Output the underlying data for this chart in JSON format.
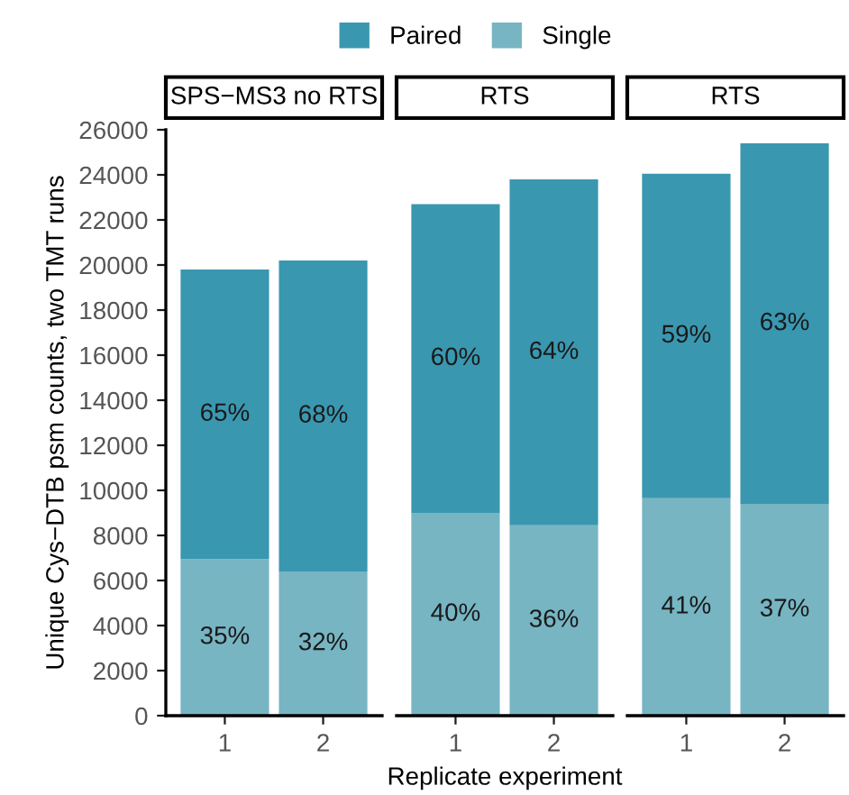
{
  "chart_data": [
    {
      "type": "bar",
      "title": "SPS−MS3 no RTS",
      "ylabel": "Unique Cys−DTB psm counts, two TMT runs",
      "categories": [
        "1",
        "2"
      ],
      "stacked": true,
      "ylim": [
        0,
        26000
      ],
      "yticks": [
        0,
        2000,
        4000,
        6000,
        8000,
        10000,
        12000,
        14000,
        16000,
        18000,
        20000,
        22000,
        24000,
        26000
      ],
      "grid": false,
      "legend": "top",
      "series": [
        {
          "name": "Single",
          "color": "#77b5c3",
          "values": [
            6950,
            6400
          ]
        },
        {
          "name": "Paired",
          "color": "#3a97b0",
          "values": [
            12850,
            13800
          ]
        }
      ],
      "annotations": [
        "35%",
        "32%",
        "65%",
        "68%"
      ]
    },
    {
      "type": "bar",
      "title": "RTS",
      "xlabel": "Replicate experiment",
      "categories": [
        "1",
        "2"
      ],
      "stacked": true,
      "ylim": [
        0,
        26000
      ],
      "tick_labels": "x",
      "grid": false,
      "series": [
        {
          "color": "#77b5c3",
          "values": [
            9000,
            8450
          ]
        },
        {
          "color": "#3a97b0",
          "values": [
            13700,
            15350
          ]
        }
      ],
      "annotations": [
        "40%",
        "36%",
        "60%",
        "64%"
      ]
    },
    {
      "type": "bar",
      "title": "RTS",
      "categories": [
        "1",
        "2"
      ],
      "stacked": true,
      "ylim": [
        0,
        26000
      ],
      "tick_labels": "x",
      "grid": false,
      "series": [
        {
          "color": "#77b5c3",
          "values": [
            9650,
            9400
          ]
        },
        {
          "color": "#3a97b0",
          "values": [
            14400,
            16000
          ]
        }
      ],
      "annotations": [
        "41%",
        "37%",
        "59%",
        "63%"
      ]
    }
  ]
}
